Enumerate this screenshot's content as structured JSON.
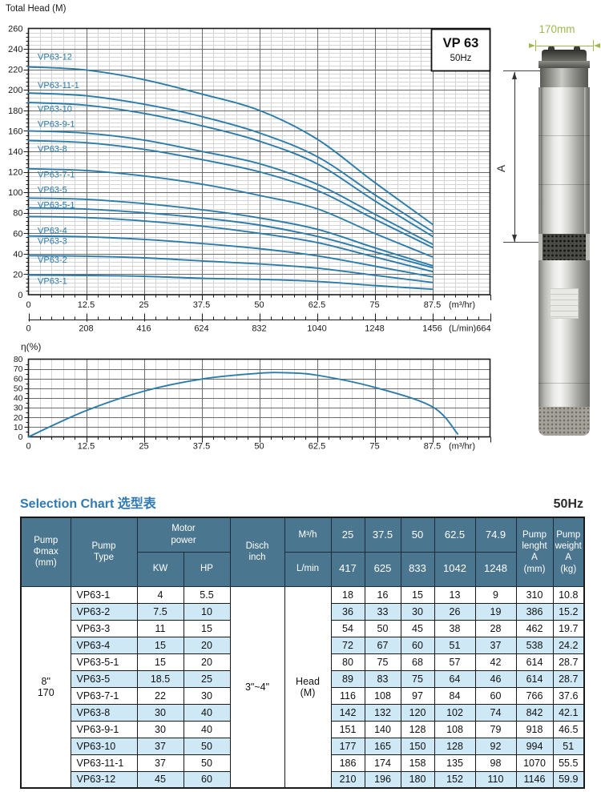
{
  "chart_data": {
    "head": {
      "type": "line",
      "title": "Total Head (M)",
      "badge": {
        "model": "VP 63",
        "freq": "50Hz"
      },
      "xlabel": "",
      "ylabel": "Total Head (M)",
      "x_unit": "(m³/hr)",
      "xlim": [
        0,
        100
      ],
      "ylim": [
        0,
        260
      ],
      "x_ticks": [
        "0",
        "12.5",
        "25",
        "37.5",
        "50",
        "62.5",
        "75",
        "87.5"
      ],
      "y_ticks": [
        "0",
        "20",
        "40",
        "60",
        "80",
        "100",
        "120",
        "140",
        "160",
        "180",
        "200",
        "220",
        "240",
        "260"
      ],
      "grid": "on",
      "curve_color": "#2b7cab",
      "x": [
        0,
        12.5,
        25,
        37.5,
        50,
        62.5,
        74.9,
        87.5
      ],
      "series": [
        {
          "name": "VP63-1",
          "label_y": 13,
          "h": [
            19.1,
            18.8,
            18,
            16,
            15,
            13,
            9,
            5.3
          ]
        },
        {
          "name": "VP63-2",
          "label_y": 33.5,
          "h": [
            38.1,
            37.6,
            36,
            33,
            30,
            26,
            19,
            12
          ]
        },
        {
          "name": "VP63-3",
          "label_y": 52,
          "h": [
            57.3,
            56.5,
            54,
            50,
            45,
            38,
            28,
            17.4
          ]
        },
        {
          "name": "VP63-4",
          "label_y": 62,
          "h": [
            76.4,
            75.3,
            72,
            67,
            60,
            51,
            37,
            22.6
          ]
        },
        {
          "name": "VP63-5-1",
          "label_y": 87,
          "h": [
            84.8,
            83.6,
            80,
            75,
            68,
            57,
            42,
            26.4
          ]
        },
        {
          "name": "VP63-5",
          "label_y": 102,
          "h": [
            94.4,
            93.1,
            89,
            83,
            75,
            64,
            46,
            28.4
          ]
        },
        {
          "name": "VP63-7-1",
          "label_y": 117,
          "h": [
            123,
            121.2,
            116,
            108,
            97,
            84,
            60,
            37
          ]
        },
        {
          "name": "VP63-8",
          "label_y": 142,
          "h": [
            150.5,
            148.4,
            142,
            132,
            120,
            102,
            74,
            46.1
          ]
        },
        {
          "name": "VP63-9-1",
          "label_y": 166,
          "h": [
            160,
            157.7,
            151,
            140,
            128,
            108,
            79,
            49.4
          ]
        },
        {
          "name": "VP63-10",
          "label_y": 181,
          "h": [
            187.7,
            185,
            177,
            165,
            150,
            128,
            92,
            57.1
          ]
        },
        {
          "name": "VP63-11-1",
          "label_y": 204,
          "h": [
            197,
            194.2,
            186,
            174,
            158,
            135,
            98,
            61.8
          ]
        },
        {
          "name": "VP63-12",
          "label_y": 232,
          "h": [
            222.5,
            219.4,
            210,
            196,
            180,
            152,
            110,
            68.9
          ]
        }
      ],
      "lmin_ticks": [
        "0",
        "208",
        "416",
        "624",
        "832",
        "1040",
        "1248",
        "1456"
      ],
      "lmin_unit": "(L/min)664"
    },
    "eff": {
      "type": "line",
      "ylabel": "η(%)",
      "x_unit": "(m³/hr)",
      "xlim": [
        0,
        100
      ],
      "ylim": [
        0,
        80
      ],
      "x_ticks": [
        "0",
        "12.5",
        "25",
        "37.5",
        "50",
        "62.5",
        "75",
        "87.5"
      ],
      "y_ticks": [
        "0",
        "10",
        "20",
        "30",
        "40",
        "50",
        "60",
        "70",
        "80"
      ],
      "grid": "on",
      "curve_color": "#2b7cab",
      "points": [
        [
          0,
          0
        ],
        [
          12.5,
          27
        ],
        [
          25,
          47
        ],
        [
          37.5,
          59.5
        ],
        [
          50,
          65.5
        ],
        [
          56,
          66
        ],
        [
          62.5,
          63.5
        ],
        [
          75,
          51
        ],
        [
          87.5,
          31
        ],
        [
          93,
          3
        ]
      ]
    },
    "table": {
      "type": "table",
      "header": {
        "dia": "Pump\nΦmax\n(mm)",
        "type": "Pump\nType",
        "motor": "Motor\npower",
        "kw": "KW",
        "hp": "HP",
        "disch": "Disch\ninch",
        "m3h": "M³/h",
        "lmin": "L/min",
        "flows_m3h": [
          "25",
          "37.5",
          "50",
          "62.5",
          "74.9"
        ],
        "flows_lmin": [
          "417",
          "625",
          "833",
          "1042",
          "1248"
        ],
        "length": "Pump\nlenght\nA\n(mm)",
        "weight": "Pump\nweight\nA\n(kg)"
      },
      "dia_value": "8\"\n170",
      "disch_value": "3\"~4\"",
      "head_label": "Head\n(M)",
      "rows": [
        {
          "type": "VP63-1",
          "kw": "4",
          "hp": "5.5",
          "heads": [
            "18",
            "16",
            "15",
            "13",
            "9"
          ],
          "length": "310",
          "weight": "10.8"
        },
        {
          "type": "VP63-2",
          "kw": "7.5",
          "hp": "10",
          "heads": [
            "36",
            "33",
            "30",
            "26",
            "19"
          ],
          "length": "386",
          "weight": "15.2"
        },
        {
          "type": "VP63-3",
          "kw": "11",
          "hp": "15",
          "heads": [
            "54",
            "50",
            "45",
            "38",
            "28"
          ],
          "length": "462",
          "weight": "19.7"
        },
        {
          "type": "VP63-4",
          "kw": "15",
          "hp": "20",
          "heads": [
            "72",
            "67",
            "60",
            "51",
            "37"
          ],
          "length": "538",
          "weight": "24.2"
        },
        {
          "type": "VP63-5-1",
          "kw": "15",
          "hp": "20",
          "heads": [
            "80",
            "75",
            "68",
            "57",
            "42"
          ],
          "length": "614",
          "weight": "28.7"
        },
        {
          "type": "VP63-5",
          "kw": "18.5",
          "hp": "25",
          "heads": [
            "89",
            "83",
            "75",
            "64",
            "46"
          ],
          "length": "614",
          "weight": "28.7"
        },
        {
          "type": "VP63-7-1",
          "kw": "22",
          "hp": "30",
          "heads": [
            "116",
            "108",
            "97",
            "84",
            "60"
          ],
          "length": "766",
          "weight": "37.6"
        },
        {
          "type": "VP63-8",
          "kw": "30",
          "hp": "40",
          "heads": [
            "142",
            "132",
            "120",
            "102",
            "74"
          ],
          "length": "842",
          "weight": "42.1"
        },
        {
          "type": "VP63-9-1",
          "kw": "30",
          "hp": "40",
          "heads": [
            "151",
            "140",
            "128",
            "108",
            "79"
          ],
          "length": "918",
          "weight": "46.5"
        },
        {
          "type": "VP63-10",
          "kw": "37",
          "hp": "50",
          "heads": [
            "177",
            "165",
            "150",
            "128",
            "92"
          ],
          "length": "994",
          "weight": "51"
        },
        {
          "type": "VP63-11-1",
          "kw": "37",
          "hp": "50",
          "heads": [
            "186",
            "174",
            "158",
            "135",
            "98"
          ],
          "length": "1070",
          "weight": "55.5"
        },
        {
          "type": "VP63-12",
          "kw": "45",
          "hp": "60",
          "heads": [
            "210",
            "196",
            "180",
            "152",
            "110"
          ],
          "length": "1146",
          "weight": "59.9"
        }
      ]
    }
  },
  "pump_figure": {
    "width_label": "170mm",
    "height_label": "A",
    "dim_color": "#9cb84c"
  },
  "selection": {
    "title": "Selection Chart 选型表",
    "freq": "50Hz"
  }
}
